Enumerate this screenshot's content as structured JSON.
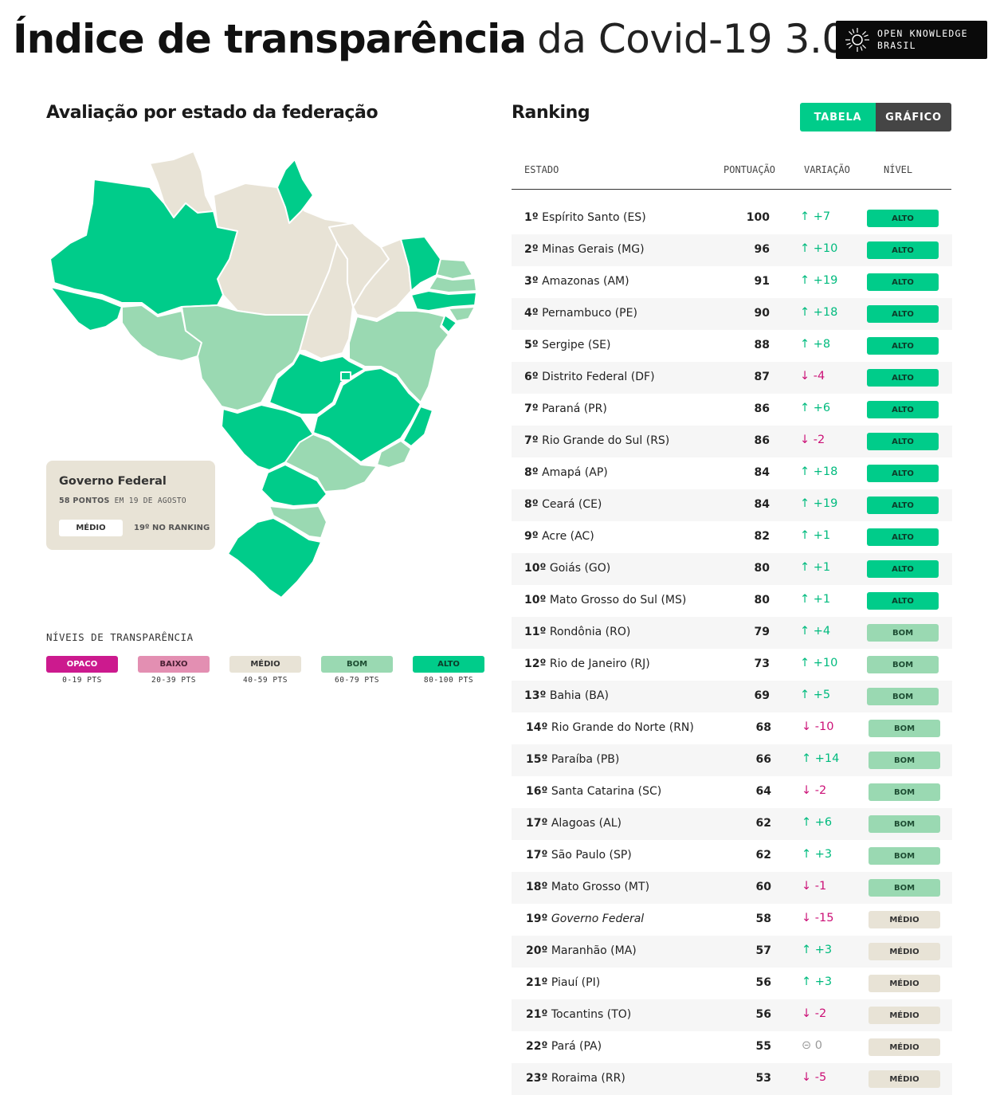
{
  "header": {
    "title_bold": "Índice de transparência",
    "title_light": "da Covid-19 3.0",
    "logo_line1": "OPEN KNOWLEDGE",
    "logo_line2": "BRASIL"
  },
  "map_section": {
    "title": "Avaliação por estado da federação"
  },
  "gov_card": {
    "name": "Governo Federal",
    "points_bold": "58 PONTOS",
    "points_rest": " EM 19 DE AGOSTO",
    "level": "MÉDIO",
    "rank": "19º NO RANKING"
  },
  "legend": {
    "title": "NÍVEIS DE TRANSPARÊNCIA",
    "items": [
      {
        "label": "OPACO",
        "range": "0-19 PTS",
        "bg": "#cc1a8e",
        "fg": "#ffffff"
      },
      {
        "label": "BAIXO",
        "range": "20-39 PTS",
        "bg": "#e38fb2",
        "fg": "#4a2034"
      },
      {
        "label": "MÉDIO",
        "range": "40-59 PTS",
        "bg": "#e8e3d6",
        "fg": "#333333"
      },
      {
        "label": "BOM",
        "range": "60-79 PTS",
        "bg": "#9ad9b2",
        "fg": "#1e4d33"
      },
      {
        "label": "ALTO",
        "range": "80-100 PTS",
        "bg": "#00cc8a",
        "fg": "#0c3d2a"
      }
    ]
  },
  "ranking": {
    "title": "Ranking",
    "toggle": {
      "table": "TABELA",
      "chart": "GRÁFICO"
    },
    "columns": {
      "state": "ESTADO",
      "score": "PONTUAÇÃO",
      "variation": "VARIAÇÃO",
      "level": "NÍVEL"
    },
    "rows": [
      {
        "pos": "1º",
        "name": "Espírito Santo (ES)",
        "score": "100",
        "arrow": "↑",
        "var": "+7",
        "dir": "up",
        "level": "ALTO"
      },
      {
        "pos": "2º",
        "name": "Minas Gerais (MG)",
        "score": "96",
        "arrow": "↑",
        "var": "+10",
        "dir": "up",
        "level": "ALTO"
      },
      {
        "pos": "3º",
        "name": "Amazonas (AM)",
        "score": "91",
        "arrow": "↑",
        "var": "+19",
        "dir": "up",
        "level": "ALTO"
      },
      {
        "pos": "4º",
        "name": "Pernambuco (PE)",
        "score": "90",
        "arrow": "↑",
        "var": "+18",
        "dir": "up",
        "level": "ALTO"
      },
      {
        "pos": "5º",
        "name": "Sergipe (SE)",
        "score": "88",
        "arrow": "↑",
        "var": "+8",
        "dir": "up",
        "level": "ALTO"
      },
      {
        "pos": "6º",
        "name": "Distrito Federal (DF)",
        "score": "87",
        "arrow": "↓",
        "var": "-4",
        "dir": "down",
        "level": "ALTO"
      },
      {
        "pos": "7º",
        "name": "Paraná (PR)",
        "score": "86",
        "arrow": "↑",
        "var": "+6",
        "dir": "up",
        "level": "ALTO"
      },
      {
        "pos": "7º",
        "name": "Rio Grande do Sul (RS)",
        "score": "86",
        "arrow": "↓",
        "var": "-2",
        "dir": "down",
        "level": "ALTO"
      },
      {
        "pos": "8º",
        "name": "Amapá (AP)",
        "score": "84",
        "arrow": "↑",
        "var": "+18",
        "dir": "up",
        "level": "ALTO"
      },
      {
        "pos": "8º",
        "name": "Ceará (CE)",
        "score": "84",
        "arrow": "↑",
        "var": "+19",
        "dir": "up",
        "level": "ALTO"
      },
      {
        "pos": "9º",
        "name": "Acre (AC)",
        "score": "82",
        "arrow": "↑",
        "var": "+1",
        "dir": "up",
        "level": "ALTO"
      },
      {
        "pos": "10º",
        "name": "Goiás (GO)",
        "score": "80",
        "arrow": "↑",
        "var": "+1",
        "dir": "up",
        "level": "ALTO"
      },
      {
        "pos": "10º",
        "name": "Mato Grosso do Sul (MS)",
        "score": "80",
        "arrow": "↑",
        "var": "+1",
        "dir": "up",
        "level": "ALTO"
      },
      {
        "pos": "11º",
        "name": "Rondônia (RO)",
        "score": "79",
        "arrow": "↑",
        "var": "+4",
        "dir": "up",
        "level": "BOM"
      },
      {
        "pos": "12º",
        "name": "Rio de Janeiro (RJ)",
        "score": "73",
        "arrow": "↑",
        "var": "+10",
        "dir": "up",
        "level": "BOM"
      },
      {
        "pos": "13º",
        "name": "Bahia (BA)",
        "score": "69",
        "arrow": "↑",
        "var": "+5",
        "dir": "up",
        "level": "BOM"
      },
      {
        "pos": "14º",
        "name": "Rio Grande do Norte (RN)",
        "score": "68",
        "arrow": "↓",
        "var": "-10",
        "dir": "down",
        "level": "BOM"
      },
      {
        "pos": "15º",
        "name": "Paraíba (PB)",
        "score": "66",
        "arrow": "↑",
        "var": "+14",
        "dir": "up",
        "level": "BOM"
      },
      {
        "pos": "16º",
        "name": "Santa Catarina (SC)",
        "score": "64",
        "arrow": "↓",
        "var": "-2",
        "dir": "down",
        "level": "BOM"
      },
      {
        "pos": "17º",
        "name": "Alagoas (AL)",
        "score": "62",
        "arrow": "↑",
        "var": "+6",
        "dir": "up",
        "level": "BOM"
      },
      {
        "pos": "17º",
        "name": "São Paulo (SP)",
        "score": "62",
        "arrow": "↑",
        "var": "+3",
        "dir": "up",
        "level": "BOM"
      },
      {
        "pos": "18º",
        "name": "Mato Grosso (MT)",
        "score": "60",
        "arrow": "↓",
        "var": "-1",
        "dir": "down",
        "level": "BOM"
      },
      {
        "pos": "19º",
        "name": "Governo Federal",
        "italic": true,
        "score": "58",
        "arrow": "↓",
        "var": "-15",
        "dir": "down",
        "level": "MÉDIO"
      },
      {
        "pos": "20º",
        "name": "Maranhão (MA)",
        "score": "57",
        "arrow": "↑",
        "var": "+3",
        "dir": "up",
        "level": "MÉDIO"
      },
      {
        "pos": "21º",
        "name": "Piauí (PI)",
        "score": "56",
        "arrow": "↑",
        "var": "+3",
        "dir": "up",
        "level": "MÉDIO"
      },
      {
        "pos": "21º",
        "name": "Tocantins (TO)",
        "score": "56",
        "arrow": "↓",
        "var": "-2",
        "dir": "down",
        "level": "MÉDIO"
      },
      {
        "pos": "22º",
        "name": "Pará (PA)",
        "score": "55",
        "arrow": "⊝",
        "var": "0",
        "dir": "zero",
        "level": "MÉDIO"
      },
      {
        "pos": "23º",
        "name": "Roraima (RR)",
        "score": "53",
        "arrow": "↓",
        "var": "-5",
        "dir": "down",
        "level": "MÉDIO"
      }
    ]
  },
  "colors": {
    "alto": "#00cc8a",
    "bom": "#9ad9b2",
    "medio": "#e8e3d6",
    "up": "#00bb7e",
    "down": "#cc1177",
    "alto_text": "#0c3d2a",
    "bom_text": "#1e4d33",
    "medio_text": "#333333"
  }
}
